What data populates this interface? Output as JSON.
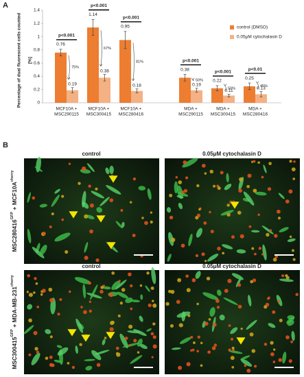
{
  "panel_a": {
    "label": "A"
  },
  "chart_data": {
    "type": "bar",
    "ylabel": "Percentage of dual fluorescent cells counted",
    "ylabel_unit": "[%]",
    "categories": [
      [
        "MCF10A +",
        "MSC290115"
      ],
      [
        "MCF10A +",
        "MSC300415"
      ],
      [
        "MCF10A +",
        "MSC280416"
      ],
      [
        "MDA +",
        "MSC290115"
      ],
      [
        "MDA +",
        "MSC300415"
      ],
      [
        "MDA +",
        "MSC280416"
      ]
    ],
    "series": [
      {
        "name": "control (DMSO)",
        "color": "#ed7d31",
        "values": [
          0.76,
          1.14,
          0.95,
          0.38,
          0.22,
          0.25
        ],
        "errors": [
          0.05,
          0.12,
          0.13,
          0.05,
          0.04,
          0.05
        ]
      },
      {
        "name": "0.05μM cytochalasin D",
        "color": "#f4b183",
        "values": [
          0.19,
          0.38,
          0.18,
          0.19,
          0.11,
          0.13
        ],
        "errors": [
          0.04,
          0.05,
          0.03,
          0.03,
          0.02,
          0.04
        ]
      }
    ],
    "annotations": [
      {
        "p": "p<0.001",
        "change": "75%"
      },
      {
        "p": "p<0.001",
        "change": "67%"
      },
      {
        "p": "p<0.001",
        "change": "81%"
      },
      {
        "p": "p<0.001",
        "change": "50%"
      },
      {
        "p": "p<0.001",
        "change": "50%"
      },
      {
        "p": "p<0.01",
        "change": "45%"
      }
    ],
    "ylim": [
      0,
      1.4
    ],
    "yticks": [
      0,
      0.2,
      0.4,
      0.6,
      0.8,
      1,
      1.2,
      1.4
    ],
    "legend": "upper right"
  },
  "panel_b": {
    "label": "B",
    "column_headers": [
      "control",
      "0.05μM cytochalasin D",
      "control",
      "0.05μM cytochalasin D"
    ],
    "row_labels": [
      {
        "a": "MSC280416",
        "a_sup": "GFP",
        "b": " + MCF10A",
        "b_sup": "cherry"
      },
      {
        "a": "MSC300415",
        "a_sup": "GFP",
        "b": " + MDA-MB-231",
        "b_sup": "cherry"
      }
    ]
  }
}
